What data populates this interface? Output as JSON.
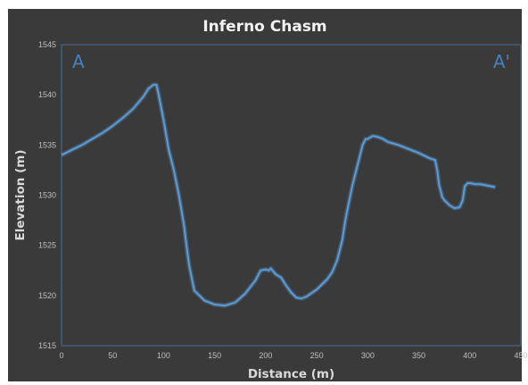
{
  "chart_data": {
    "type": "line",
    "title": "Inferno Chasm",
    "xlabel": "Distance (m)",
    "ylabel": "Elevation (m)",
    "xlim": [
      0,
      450
    ],
    "ylim": [
      1515,
      1545
    ],
    "xticks": [
      0,
      50,
      100,
      150,
      200,
      250,
      300,
      350,
      400,
      450
    ],
    "yticks": [
      1515,
      1520,
      1525,
      1530,
      1535,
      1540,
      1545
    ],
    "grid": false,
    "start_label": "A",
    "end_label": "A'",
    "series": [
      {
        "color": "#5b9bd5",
        "x": [
          0,
          10,
          20,
          30,
          40,
          50,
          60,
          70,
          80,
          85,
          90,
          93,
          95,
          100,
          105,
          110,
          115,
          120,
          123,
          125,
          130,
          140,
          150,
          160,
          170,
          180,
          190,
          195,
          200,
          203,
          205,
          210,
          215,
          220,
          225,
          230,
          235,
          240,
          250,
          260,
          265,
          270,
          275,
          278,
          280,
          283,
          285,
          290,
          295,
          298,
          300,
          303,
          305,
          310,
          315,
          320,
          330,
          340,
          350,
          360,
          366,
          368,
          370,
          373,
          375,
          380,
          385,
          390,
          393,
          395,
          398,
          400,
          405,
          410,
          420,
          425
        ],
        "y": [
          1534.0,
          1534.5,
          1535.0,
          1535.6,
          1536.2,
          1536.9,
          1537.7,
          1538.6,
          1539.8,
          1540.6,
          1541.0,
          1541.0,
          1540.1,
          1537.5,
          1534.5,
          1532.5,
          1530.0,
          1527.0,
          1524.5,
          1523.0,
          1520.5,
          1519.5,
          1519.1,
          1519.0,
          1519.3,
          1520.2,
          1521.5,
          1522.5,
          1522.6,
          1522.5,
          1522.7,
          1522.1,
          1521.8,
          1521.0,
          1520.3,
          1519.8,
          1519.7,
          1519.9,
          1520.6,
          1521.6,
          1522.3,
          1523.5,
          1525.5,
          1527.5,
          1528.5,
          1530.0,
          1531.0,
          1533.0,
          1535.0,
          1535.6,
          1535.6,
          1535.8,
          1535.9,
          1535.8,
          1535.6,
          1535.3,
          1535.0,
          1534.6,
          1534.2,
          1533.7,
          1533.5,
          1532.5,
          1531.0,
          1529.8,
          1529.5,
          1529.0,
          1528.7,
          1528.8,
          1529.5,
          1530.9,
          1531.2,
          1531.2,
          1531.1,
          1531.1,
          1530.9,
          1530.8
        ]
      }
    ]
  }
}
